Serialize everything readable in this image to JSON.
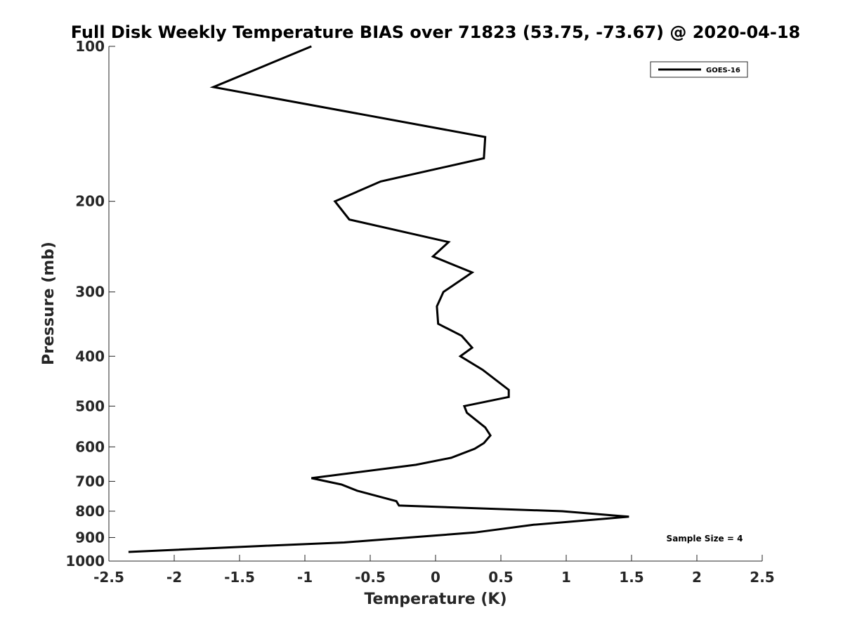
{
  "chart_data": {
    "type": "line",
    "title": "Full Disk Weekly Temperature BIAS over 71823 (53.75, -73.67) @ 2020-04-18",
    "xlabel": "Temperature (K)",
    "ylabel": "Pressure (mb)",
    "xlim": [
      -2.5,
      2.5
    ],
    "ylim": [
      100,
      1000
    ],
    "y_scale": "log",
    "y_reversed": true,
    "x_ticks": [
      -2.5,
      -2,
      -1.5,
      -1,
      -0.5,
      0,
      0.5,
      1,
      1.5,
      2,
      2.5
    ],
    "x_tick_labels": [
      "-2.5",
      "-2",
      "-1.5",
      "-1",
      "-0.5",
      "0",
      "0.5",
      "1",
      "1.5",
      "2",
      "2.5"
    ],
    "y_ticks": [
      100,
      200,
      300,
      400,
      500,
      600,
      700,
      800,
      900,
      1000
    ],
    "y_tick_labels": [
      "100",
      "200",
      "300",
      "400",
      "500",
      "600",
      "700",
      "800",
      "900",
      "1000"
    ],
    "grid": false,
    "legend_position": "top-right",
    "series": [
      {
        "name": "GOES-16",
        "color": "#000000",
        "points": [
          {
            "x": -0.95,
            "y": 100
          },
          {
            "x": -1.7,
            "y": 120
          },
          {
            "x": 0.38,
            "y": 150
          },
          {
            "x": 0.37,
            "y": 165
          },
          {
            "x": -0.42,
            "y": 183
          },
          {
            "x": -0.77,
            "y": 200
          },
          {
            "x": -0.66,
            "y": 217
          },
          {
            "x": 0.1,
            "y": 240
          },
          {
            "x": -0.02,
            "y": 256
          },
          {
            "x": 0.28,
            "y": 275
          },
          {
            "x": 0.06,
            "y": 300
          },
          {
            "x": 0.01,
            "y": 320
          },
          {
            "x": 0.02,
            "y": 346
          },
          {
            "x": 0.2,
            "y": 365
          },
          {
            "x": 0.28,
            "y": 385
          },
          {
            "x": 0.19,
            "y": 400
          },
          {
            "x": 0.36,
            "y": 425
          },
          {
            "x": 0.56,
            "y": 465
          },
          {
            "x": 0.56,
            "y": 480
          },
          {
            "x": 0.22,
            "y": 500
          },
          {
            "x": 0.24,
            "y": 515
          },
          {
            "x": 0.38,
            "y": 550
          },
          {
            "x": 0.42,
            "y": 570
          },
          {
            "x": 0.37,
            "y": 590
          },
          {
            "x": 0.3,
            "y": 605
          },
          {
            "x": 0.12,
            "y": 630
          },
          {
            "x": -0.15,
            "y": 650
          },
          {
            "x": -0.95,
            "y": 690
          },
          {
            "x": -0.72,
            "y": 710
          },
          {
            "x": -0.6,
            "y": 730
          },
          {
            "x": -0.3,
            "y": 765
          },
          {
            "x": -0.28,
            "y": 780
          },
          {
            "x": 0.97,
            "y": 800
          },
          {
            "x": 1.48,
            "y": 820
          },
          {
            "x": 0.75,
            "y": 850
          },
          {
            "x": 0.3,
            "y": 880
          },
          {
            "x": -0.7,
            "y": 920
          },
          {
            "x": -1.35,
            "y": 935
          },
          {
            "x": -2.35,
            "y": 960
          }
        ]
      }
    ],
    "annotations": [
      "Sample Size = 4"
    ]
  }
}
